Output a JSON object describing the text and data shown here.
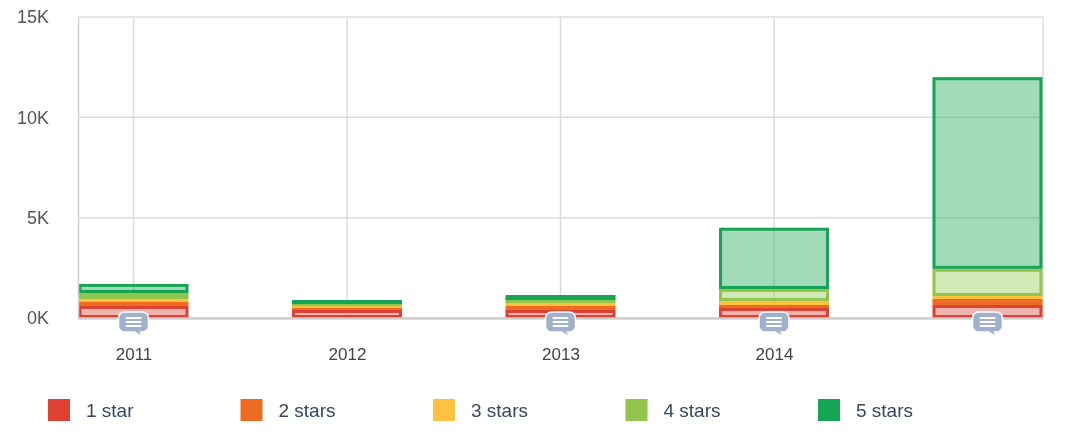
{
  "chart_data": {
    "type": "bar",
    "stacked": true,
    "categories": [
      "2011",
      "2012",
      "2013",
      "2014",
      null
    ],
    "series": [
      {
        "name": "1 star",
        "color": "#dc4132",
        "values": [
          600,
          400,
          400,
          500,
          650
        ]
      },
      {
        "name": "2 stars",
        "color": "#ee6c21",
        "values": [
          200,
          100,
          200,
          150,
          300
        ]
      },
      {
        "name": "3 stars",
        "color": "#fec240",
        "values": [
          150,
          100,
          150,
          200,
          150
        ]
      },
      {
        "name": "4 stars",
        "color": "#91c54c",
        "values": [
          300,
          100,
          150,
          600,
          1350
        ]
      },
      {
        "name": "5 stars",
        "color": "#16a553",
        "values": [
          450,
          200,
          250,
          3050,
          9550
        ]
      }
    ],
    "ylim": [
      0,
      15000
    ],
    "yticks": [
      {
        "value": 0,
        "label": "0K"
      },
      {
        "value": 5000,
        "label": "5K"
      },
      {
        "value": 10000,
        "label": "10K"
      },
      {
        "value": 15000,
        "label": "15K"
      }
    ],
    "grid": true,
    "legend": "bottom"
  }
}
